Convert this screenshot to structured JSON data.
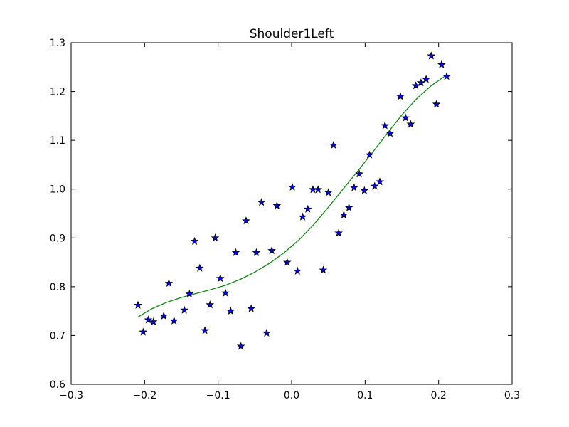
{
  "chart_data": {
    "type": "scatter",
    "title": "Shoulder1Left",
    "xlabel": "",
    "ylabel": "",
    "xlim": [
      -0.3,
      0.3
    ],
    "ylim": [
      0.6,
      1.3
    ],
    "grid": false,
    "xticks": [
      -0.3,
      -0.2,
      -0.1,
      0.0,
      0.1,
      0.2,
      0.3
    ],
    "xtick_labels": [
      "−0.3",
      "−0.2",
      "−0.1",
      "0.0",
      "0.1",
      "0.2",
      "0.3"
    ],
    "yticks": [
      0.6,
      0.7,
      0.8,
      0.9,
      1.0,
      1.1,
      1.2,
      1.3
    ],
    "ytick_labels": [
      "0.6",
      "0.7",
      "0.8",
      "0.9",
      "1.0",
      "1.1",
      "1.2",
      "1.3"
    ],
    "series": [
      {
        "kind": "scatter",
        "marker": "star",
        "color": "#0000ff",
        "edge_color": "#000000",
        "points": [
          [
            -0.209,
            0.762
          ],
          [
            -0.202,
            0.707
          ],
          [
            -0.195,
            0.732
          ],
          [
            -0.188,
            0.728
          ],
          [
            -0.174,
            0.74
          ],
          [
            -0.167,
            0.807
          ],
          [
            -0.16,
            0.73
          ],
          [
            -0.146,
            0.752
          ],
          [
            -0.139,
            0.785
          ],
          [
            -0.132,
            0.893
          ],
          [
            -0.125,
            0.838
          ],
          [
            -0.118,
            0.71
          ],
          [
            -0.111,
            0.763
          ],
          [
            -0.104,
            0.9
          ],
          [
            -0.097,
            0.817
          ],
          [
            -0.09,
            0.787
          ],
          [
            -0.083,
            0.75
          ],
          [
            -0.076,
            0.87
          ],
          [
            -0.069,
            0.678
          ],
          [
            -0.062,
            0.935
          ],
          [
            -0.055,
            0.755
          ],
          [
            -0.048,
            0.87
          ],
          [
            -0.041,
            0.973
          ],
          [
            -0.034,
            0.705
          ],
          [
            -0.027,
            0.874
          ],
          [
            -0.02,
            0.966
          ],
          [
            -0.006,
            0.85
          ],
          [
            0.001,
            1.004
          ],
          [
            0.008,
            0.832
          ],
          [
            0.015,
            0.943
          ],
          [
            0.022,
            0.959
          ],
          [
            0.029,
            0.999
          ],
          [
            0.036,
            0.999
          ],
          [
            0.043,
            0.834
          ],
          [
            0.05,
            0.993
          ],
          [
            0.057,
            1.09
          ],
          [
            0.064,
            0.91
          ],
          [
            0.071,
            0.947
          ],
          [
            0.078,
            0.962
          ],
          [
            0.085,
            1.003
          ],
          [
            0.092,
            1.031
          ],
          [
            0.099,
            0.997
          ],
          [
            0.106,
            1.07
          ],
          [
            0.113,
            1.006
          ],
          [
            0.12,
            1.015
          ],
          [
            0.127,
            1.13
          ],
          [
            0.134,
            1.114
          ],
          [
            0.148,
            1.19
          ],
          [
            0.155,
            1.146
          ],
          [
            0.162,
            1.133
          ],
          [
            0.169,
            1.212
          ],
          [
            0.176,
            1.218
          ],
          [
            0.183,
            1.225
          ],
          [
            0.19,
            1.273
          ],
          [
            0.197,
            1.174
          ],
          [
            0.204,
            1.255
          ],
          [
            0.211,
            1.231
          ]
        ]
      },
      {
        "kind": "line",
        "color": "#008000",
        "points": [
          [
            -0.209,
            0.738
          ],
          [
            -0.19,
            0.755
          ],
          [
            -0.17,
            0.768
          ],
          [
            -0.15,
            0.778
          ],
          [
            -0.13,
            0.786
          ],
          [
            -0.11,
            0.794
          ],
          [
            -0.09,
            0.803
          ],
          [
            -0.07,
            0.815
          ],
          [
            -0.05,
            0.83
          ],
          [
            -0.03,
            0.848
          ],
          [
            -0.01,
            0.87
          ],
          [
            0.01,
            0.896
          ],
          [
            0.03,
            0.927
          ],
          [
            0.05,
            0.963
          ],
          [
            0.07,
            1.0
          ],
          [
            0.09,
            1.037
          ],
          [
            0.11,
            1.075
          ],
          [
            0.13,
            1.114
          ],
          [
            0.15,
            1.152
          ],
          [
            0.17,
            1.185
          ],
          [
            0.19,
            1.212
          ],
          [
            0.21,
            1.233
          ]
        ]
      }
    ]
  }
}
